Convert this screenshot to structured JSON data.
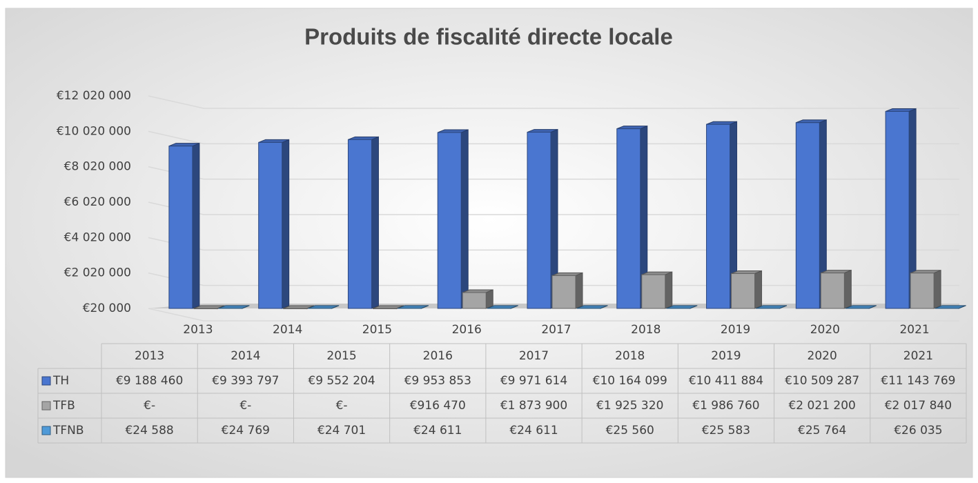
{
  "chart_data": {
    "type": "bar3d",
    "title": "Produits de fiscalité directe locale",
    "categories": [
      "2013",
      "2014",
      "2015",
      "2016",
      "2017",
      "2018",
      "2019",
      "2020",
      "2021"
    ],
    "series": [
      {
        "name": "TH",
        "color": "#4a76d0",
        "values": [
          9188460,
          9393797,
          9552204,
          9953853,
          9971614,
          10164099,
          10411884,
          10509287,
          11143769
        ],
        "value_labels": [
          "€9 188 460",
          "€9 393 797",
          "€9 552 204",
          "€9 953 853",
          "€9 971 614",
          "€10 164 099",
          "€10 411 884",
          "€10 509 287",
          "€11 143 769"
        ]
      },
      {
        "name": "TFB",
        "color": "#a5a5a5",
        "values": [
          0,
          0,
          0,
          916470,
          1873900,
          1925320,
          1986760,
          2021200,
          2017840
        ],
        "value_labels": [
          "€-",
          "€-",
          "€-",
          "€916 470",
          "€1 873 900",
          "€1 925 320",
          "€1 986 760",
          "€2 021 200",
          "€2 017 840"
        ]
      },
      {
        "name": "TFNB",
        "color": "#4f9ad8",
        "values": [
          24588,
          24769,
          24701,
          24611,
          24611,
          25560,
          25583,
          25764,
          26035
        ],
        "value_labels": [
          "€24 588",
          "€24 769",
          "€24 701",
          "€24 611",
          "€24 611",
          "€25 560",
          "€25 583",
          "€25 764",
          "€26 035"
        ]
      }
    ],
    "ylim": [
      20000,
      12020000
    ],
    "yticks": [
      {
        "value": 20000,
        "label": "€20 000"
      },
      {
        "value": 2020000,
        "label": "€2 020 000"
      },
      {
        "value": 4020000,
        "label": "€4 020 000"
      },
      {
        "value": 6020000,
        "label": "€6 020 000"
      },
      {
        "value": 8020000,
        "label": "€8 020 000"
      },
      {
        "value": 10020000,
        "label": "€10 020 000"
      },
      {
        "value": 12020000,
        "label": "€12 020 000"
      }
    ],
    "grid": true
  }
}
